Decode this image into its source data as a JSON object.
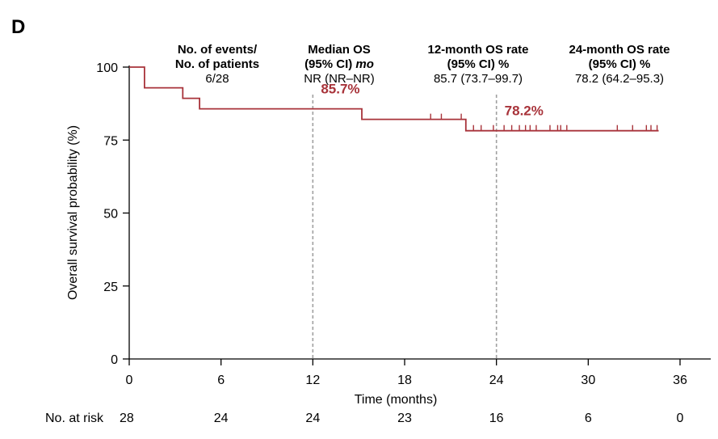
{
  "panel_label": "D",
  "header": {
    "col1_line1": "No. of events/",
    "col1_line2": "No. of patients",
    "col1_value": "6/28",
    "col2_line1": "Median OS",
    "col2_line2_a": "(95% CI) ",
    "col2_line2_b": "mo",
    "col2_value": "NR (NR–NR)",
    "col3_line1": "12-month OS rate",
    "col3_line2": "(95% CI) %",
    "col3_value": "85.7 (73.7–99.7)",
    "col4_line1": "24-month OS rate",
    "col4_line2": "(95% CI) %",
    "col4_value": "78.2 (64.2–95.3)"
  },
  "risk": {
    "label": "No. at risk",
    "values": [
      "28",
      "24",
      "24",
      "23",
      "16",
      "6",
      "0"
    ]
  },
  "colors": {
    "curve": "#a8333a",
    "reference_line": "#a0a0a0",
    "axis": "#000000"
  },
  "chart_data": {
    "type": "line",
    "xlabel": "Time (months)",
    "ylabel": "Overall survival probability (%)",
    "xlim": [
      0,
      36
    ],
    "ylim": [
      0,
      100
    ],
    "xticks": [
      0,
      6,
      12,
      18,
      24,
      30,
      36
    ],
    "yticks": [
      0,
      25,
      50,
      75,
      100
    ],
    "grid": false,
    "series": [
      {
        "step_points": [
          [
            0,
            100
          ],
          [
            1.0,
            100
          ],
          [
            1.0,
            92.9
          ],
          [
            3.5,
            92.9
          ],
          [
            3.5,
            89.3
          ],
          [
            4.6,
            89.3
          ],
          [
            4.6,
            85.7
          ],
          [
            15.2,
            85.7
          ],
          [
            15.2,
            82.1
          ],
          [
            22.0,
            82.1
          ],
          [
            22.0,
            78.2
          ],
          [
            34.6,
            78.2
          ]
        ],
        "censor_times": [
          19.7,
          20.4,
          21.7,
          22.5,
          23.0,
          23.8,
          24.5,
          25.0,
          25.5,
          25.9,
          26.2,
          26.6,
          27.5,
          28.0,
          28.2,
          28.6,
          31.9,
          32.9,
          33.8,
          34.1,
          34.5
        ]
      }
    ],
    "reference_lines": [
      12,
      24
    ],
    "annotations": [
      {
        "text": "85.7%",
        "x": 12,
        "y": 85.7
      },
      {
        "text": "78.2%",
        "x": 24,
        "y": 78.2
      }
    ]
  }
}
